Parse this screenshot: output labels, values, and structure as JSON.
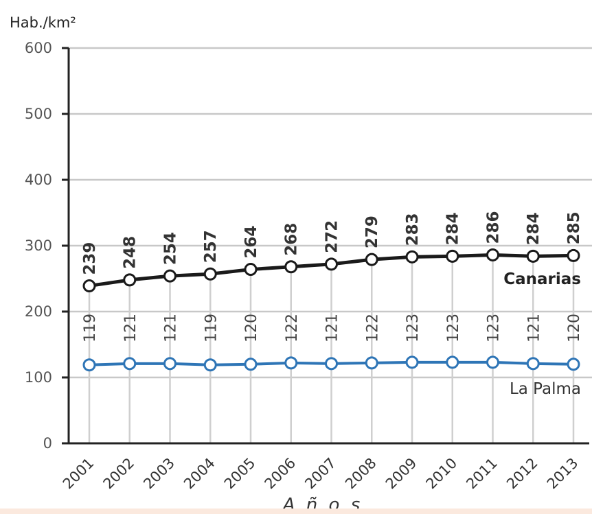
{
  "chart_data": {
    "type": "line",
    "ylabel": "Hab./km²",
    "xlabel": "A ñ o s",
    "ylim": [
      0,
      600
    ],
    "yticks": [
      0,
      100,
      200,
      300,
      400,
      500,
      600
    ],
    "grid": true,
    "categories": [
      "2001",
      "2002",
      "2003",
      "2004",
      "2005",
      "2006",
      "2007",
      "2008",
      "2009",
      "2010",
      "2011",
      "2012",
      "2013"
    ],
    "series": [
      {
        "name": "Canarias",
        "color": "#1a1a1a",
        "values": [
          239,
          248,
          254,
          257,
          264,
          268,
          272,
          279,
          283,
          284,
          286,
          284,
          285
        ]
      },
      {
        "name": "La Palma",
        "color": "#2e75b6",
        "values": [
          119,
          121,
          121,
          119,
          120,
          122,
          121,
          122,
          123,
          123,
          123,
          121,
          120
        ]
      }
    ]
  }
}
